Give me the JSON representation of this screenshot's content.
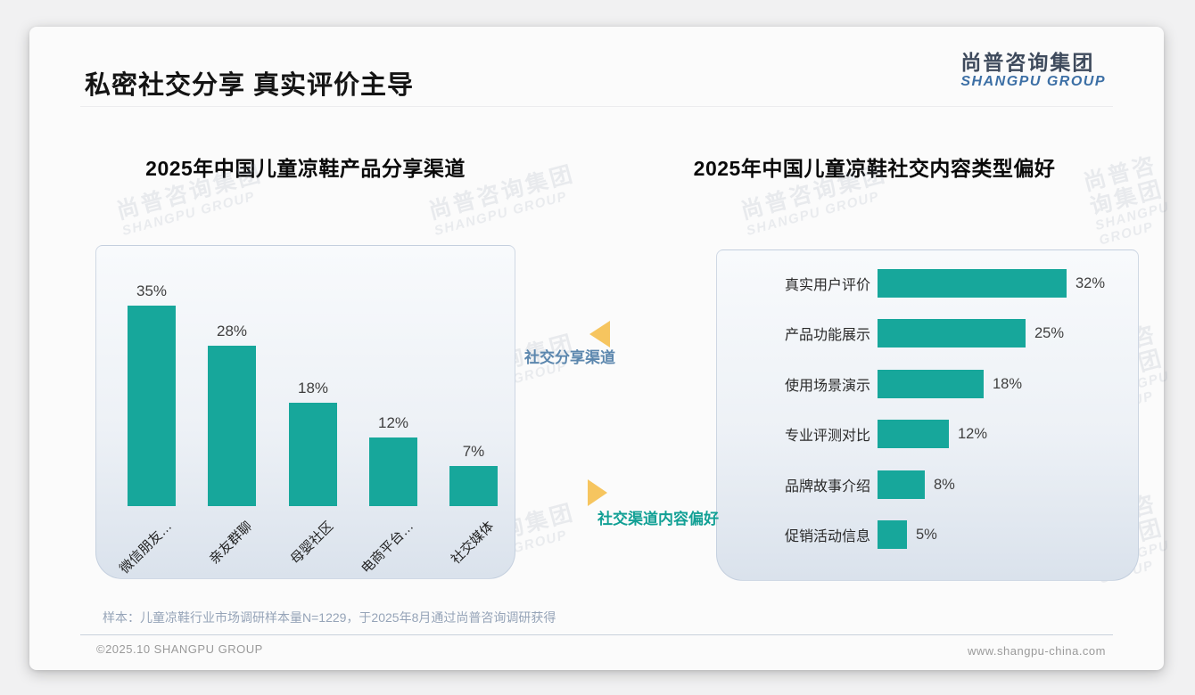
{
  "header": {
    "title": "私密社交分享 真实评价主导",
    "logo_cn": "尚普咨询集团",
    "logo_en": "SHANGPU GROUP"
  },
  "annotations": {
    "share_channel_label": "社交分享渠道",
    "content_pref_label": "社交渠道内容偏好"
  },
  "watermark": {
    "line1": "尚普咨询集团",
    "line2": "SHANGPU GROUP"
  },
  "footer": {
    "source_note": "样本：儿童凉鞋行业市场调研样本量N=1229，于2025年8月通过尚普咨询调研获得",
    "copyright": "©2025.10 SHANGPU GROUP",
    "website": "www.shangpu-china.com"
  },
  "colors": {
    "bar_teal": "#17A79B",
    "accent_yellow": "#F6C55F",
    "share_label_blue": "#5C87AE",
    "content_label_teal": "#12A095",
    "logo_blue": "#3C6FA5"
  },
  "chart_data": [
    {
      "type": "bar",
      "orientation": "vertical",
      "title": "2025年中国儿童凉鞋产品分享渠道",
      "categories": [
        "微信朋友…",
        "亲友群聊",
        "母婴社区",
        "电商平台…",
        "社交媒体"
      ],
      "values": [
        35,
        28,
        18,
        12,
        7
      ],
      "value_labels": [
        "35%",
        "28%",
        "18%",
        "12%",
        "7%"
      ],
      "unit": "%",
      "ylim": [
        0,
        40
      ],
      "legend": "none",
      "grid": "off"
    },
    {
      "type": "bar",
      "orientation": "horizontal",
      "title": "2025年中国儿童凉鞋社交内容类型偏好",
      "categories": [
        "真实用户评价",
        "产品功能展示",
        "使用场景演示",
        "专业评测对比",
        "品牌故事介绍",
        "促销活动信息"
      ],
      "values": [
        32,
        25,
        18,
        12,
        8,
        5
      ],
      "value_labels": [
        "32%",
        "25%",
        "18%",
        "12%",
        "8%",
        "5%"
      ],
      "unit": "%",
      "xlim": [
        0,
        35
      ],
      "legend": "none",
      "grid": "off"
    }
  ]
}
